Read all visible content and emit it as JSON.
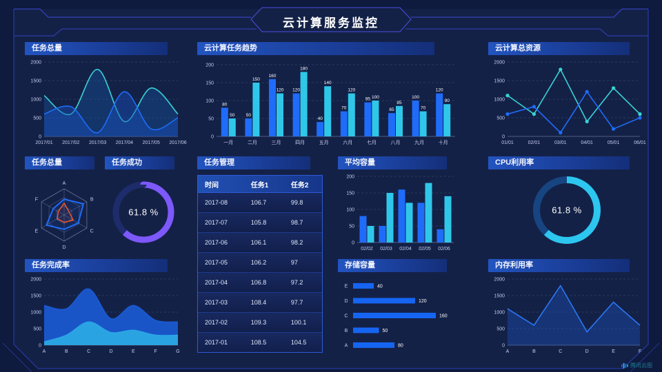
{
  "header": {
    "title": "云计算服务监控"
  },
  "watermark": {
    "label": "腾讯云图",
    "icon": "audio-bars-logo-icon"
  },
  "colors": {
    "blue": "#1f6cf9",
    "cyan": "#2fc7e9",
    "teal": "#38d4d4",
    "purple": "#7d58fb",
    "orange": "#f4542c",
    "bg_outer": "#0e1a3e",
    "bg_inner": "#142147",
    "frame": "#3244c6"
  },
  "panels": {
    "task_total": {
      "title": "任务总量"
    },
    "task_trend": {
      "title": "云计算任务趋势"
    },
    "cloud_resource": {
      "title": "云计算总资源"
    },
    "radar_total": {
      "title": "任务总量"
    },
    "task_success": {
      "title": "任务成功"
    },
    "task_table": {
      "title": "任务管理"
    },
    "avg_capacity": {
      "title": "平均容量"
    },
    "cpu_usage": {
      "title": "CPU利用率"
    },
    "completion": {
      "title": "任务完成率"
    },
    "storage": {
      "title": "存储容量"
    },
    "memory": {
      "title": "内存利用率"
    }
  },
  "chart_data": [
    {
      "id": "task-total-line",
      "type": "area",
      "smooth": true,
      "edge": true,
      "title": "任务总量",
      "x": [
        "2017/01",
        "2017/02",
        "2017/03",
        "2017/04",
        "2017/05",
        "2017/06"
      ],
      "ylim": [
        0,
        2000
      ],
      "yticks": [
        0,
        500,
        1000,
        1500,
        2000
      ],
      "series": [
        {
          "name": "series-teal",
          "color": "#38d4d4",
          "fill": "rgba(24,100,190,0.30)",
          "values": [
            1100,
            600,
            1800,
            400,
            1300,
            600
          ]
        },
        {
          "name": "series-blue",
          "color": "#1f6cf9",
          "fill": "rgba(23,80,190,0.45)",
          "values": [
            600,
            800,
            100,
            1200,
            200,
            500
          ]
        }
      ]
    },
    {
      "id": "task-trend-bar",
      "type": "bar",
      "labels": true,
      "title": "云计算任务趋势",
      "categories": [
        "一月",
        "二月",
        "三月",
        "四月",
        "五月",
        "六月",
        "七月",
        "八月",
        "九月",
        "十月"
      ],
      "ylim": [
        0,
        200
      ],
      "yticks": [
        0,
        50,
        100,
        150,
        200
      ],
      "series": [
        {
          "name": "任务1",
          "color": "#1f6cf9",
          "values": [
            80,
            50,
            160,
            120,
            40,
            70,
            95,
            65,
            100,
            120
          ]
        },
        {
          "name": "任务2",
          "color": "#2fc7e9",
          "values": [
            50,
            150,
            120,
            180,
            140,
            120,
            100,
            85,
            70,
            90
          ]
        }
      ]
    },
    {
      "id": "cloud-resource-line",
      "type": "line",
      "smooth": false,
      "markers": true,
      "edge": true,
      "title": "云计算总资源",
      "x": [
        "01/01",
        "02/01",
        "03/01",
        "04/01",
        "05/01",
        "06/01"
      ],
      "ylim": [
        0,
        2000
      ],
      "yticks": [
        0,
        500,
        1000,
        1500,
        2000
      ],
      "series": [
        {
          "name": "series-teal",
          "color": "#38d4d4",
          "values": [
            1100,
            600,
            1800,
            400,
            1300,
            600
          ]
        },
        {
          "name": "series-blue",
          "color": "#1f6cf9",
          "values": [
            600,
            800,
            100,
            1200,
            200,
            500
          ]
        }
      ]
    },
    {
      "id": "radar-total",
      "type": "radar",
      "title": "任务总量",
      "axes": [
        "A",
        "B",
        "C",
        "D",
        "E",
        "F"
      ],
      "max": 1,
      "levels": 3,
      "series": [
        {
          "name": "series-blue",
          "color": "#1f6cf9",
          "fill": "rgba(31,108,249,0.10)",
          "values": [
            0.6,
            0.85,
            0.62,
            0.55,
            0.78,
            0.48
          ]
        },
        {
          "name": "series-orange",
          "color": "#f4542c",
          "fill": "rgba(244,84,44,0.08)",
          "values": [
            0.45,
            0.22,
            0.4,
            0.28,
            0.3,
            0.26
          ]
        }
      ]
    },
    {
      "id": "success-gauge",
      "type": "gauge",
      "title": "任务成功",
      "value": 61.8,
      "unit": "%",
      "color": "#7d58fb",
      "track": "#1e2c6c",
      "r": 40,
      "sw": 9
    },
    {
      "id": "task-table",
      "type": "table",
      "title": "任务管理",
      "headers": [
        "时间",
        "任务1",
        "任务2"
      ],
      "rows": [
        [
          "2017-08",
          "106.7",
          "99.8"
        ],
        [
          "2017-07",
          "105.8",
          "98.7"
        ],
        [
          "2017-06",
          "106.1",
          "98.2"
        ],
        [
          "2017-05",
          "106.2",
          "97"
        ],
        [
          "2017-04",
          "106.8",
          "97.2"
        ],
        [
          "2017-03",
          "108.4",
          "97.7"
        ],
        [
          "2017-02",
          "109.3",
          "100.1"
        ],
        [
          "2017-01",
          "108.5",
          "104.5"
        ]
      ]
    },
    {
      "id": "avg-capacity-bar",
      "type": "bar",
      "labels": false,
      "title": "平均容量",
      "categories": [
        "02/02",
        "02/03",
        "02/04",
        "02/05",
        "02/06"
      ],
      "ylim": [
        0,
        200
      ],
      "yticks": [
        0,
        50,
        100,
        150,
        200
      ],
      "series": [
        {
          "name": "series-blue",
          "color": "#1f6cf9",
          "values": [
            80,
            50,
            160,
            120,
            40
          ]
        },
        {
          "name": "series-cyan",
          "color": "#2fc7e9",
          "values": [
            50,
            150,
            120,
            180,
            140
          ]
        }
      ]
    },
    {
      "id": "cpu-gauge",
      "type": "gauge",
      "title": "CPU利用率",
      "value": 61.8,
      "unit": "%",
      "color": "#2cc6ef",
      "track": "#174582",
      "r": 44,
      "sw": 10
    },
    {
      "id": "completion-area",
      "type": "area",
      "smooth": true,
      "edge": true,
      "title": "任务完成率",
      "x": [
        "A",
        "B",
        "C",
        "D",
        "E",
        "F",
        "G"
      ],
      "ylim": [
        0,
        2000
      ],
      "yticks": [
        0,
        500,
        1000,
        1500,
        2000
      ],
      "series": [
        {
          "name": "layer-blue",
          "color": "#1a5ad2",
          "fill": "#1a55c8",
          "values": [
            1200,
            1100,
            1700,
            800,
            1200,
            750,
            700
          ]
        },
        {
          "name": "layer-cyan",
          "color": "#2ba7e6",
          "fill": "#2aa3e2",
          "values": [
            100,
            300,
            700,
            380,
            450,
            300,
            300
          ]
        }
      ]
    },
    {
      "id": "storage-hbar",
      "type": "hbar",
      "title": "存储容量",
      "categories": [
        "E",
        "D",
        "C",
        "B",
        "A"
      ],
      "values": [
        40,
        120,
        160,
        50,
        80
      ],
      "color": "#1565f2",
      "xmax": 160
    },
    {
      "id": "memory-line",
      "type": "line",
      "smooth": false,
      "markers": false,
      "edge": true,
      "title": "内存利用率",
      "x": [
        "A",
        "B",
        "C",
        "D",
        "E",
        "F"
      ],
      "ylim": [
        0,
        2000
      ],
      "yticks": [
        0,
        500,
        1000,
        1500,
        2000
      ],
      "series": [
        {
          "name": "series-blue",
          "color": "#2b78f5",
          "fill": "rgba(30,90,210,0.35)",
          "values": [
            1100,
            600,
            1800,
            400,
            1300,
            600
          ]
        }
      ]
    }
  ]
}
